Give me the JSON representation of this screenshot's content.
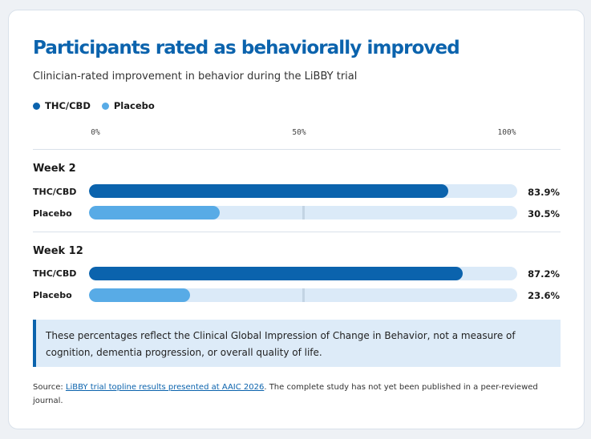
{
  "title": "Participants rated as behaviorally improved",
  "subtitle": "Clinician-rated improvement in behavior during the LiBBY trial",
  "colors": {
    "thc": "#0b63ad",
    "placebo": "#58abe6",
    "track": "#dbeaf8",
    "accent": "#0b63ad"
  },
  "chart_data": {
    "type": "bar",
    "orientation": "horizontal",
    "title": "Participants rated as behaviorally improved",
    "subtitle": "Clinician-rated improvement in behavior during the LiBBY trial",
    "legend": [
      "THC/CBD",
      "Placebo"
    ],
    "legend_position": "top-left",
    "xlim": [
      0,
      100
    ],
    "ticks": [
      "0%",
      "50%",
      "100%"
    ],
    "groups": [
      {
        "label": "Week 2",
        "bars": [
          {
            "name": "THC/CBD",
            "value": 83.9,
            "display": "83.9%"
          },
          {
            "name": "Placebo",
            "value": 30.5,
            "display": "30.5%"
          }
        ]
      },
      {
        "label": "Week 12",
        "bars": [
          {
            "name": "THC/CBD",
            "value": 87.2,
            "display": "87.2%"
          },
          {
            "name": "Placebo",
            "value": 23.6,
            "display": "23.6%"
          }
        ]
      }
    ]
  },
  "note": "These percentages reflect the Clinical Global Impression of Change in Behavior, not a measure of cognition, dementia progression, or overall quality of life.",
  "source": {
    "prefix": "Source: ",
    "link_text": "LiBBY trial topline results presented at AAIC 2026",
    "suffix": ". The complete study has not yet been published in a peer-reviewed journal."
  }
}
